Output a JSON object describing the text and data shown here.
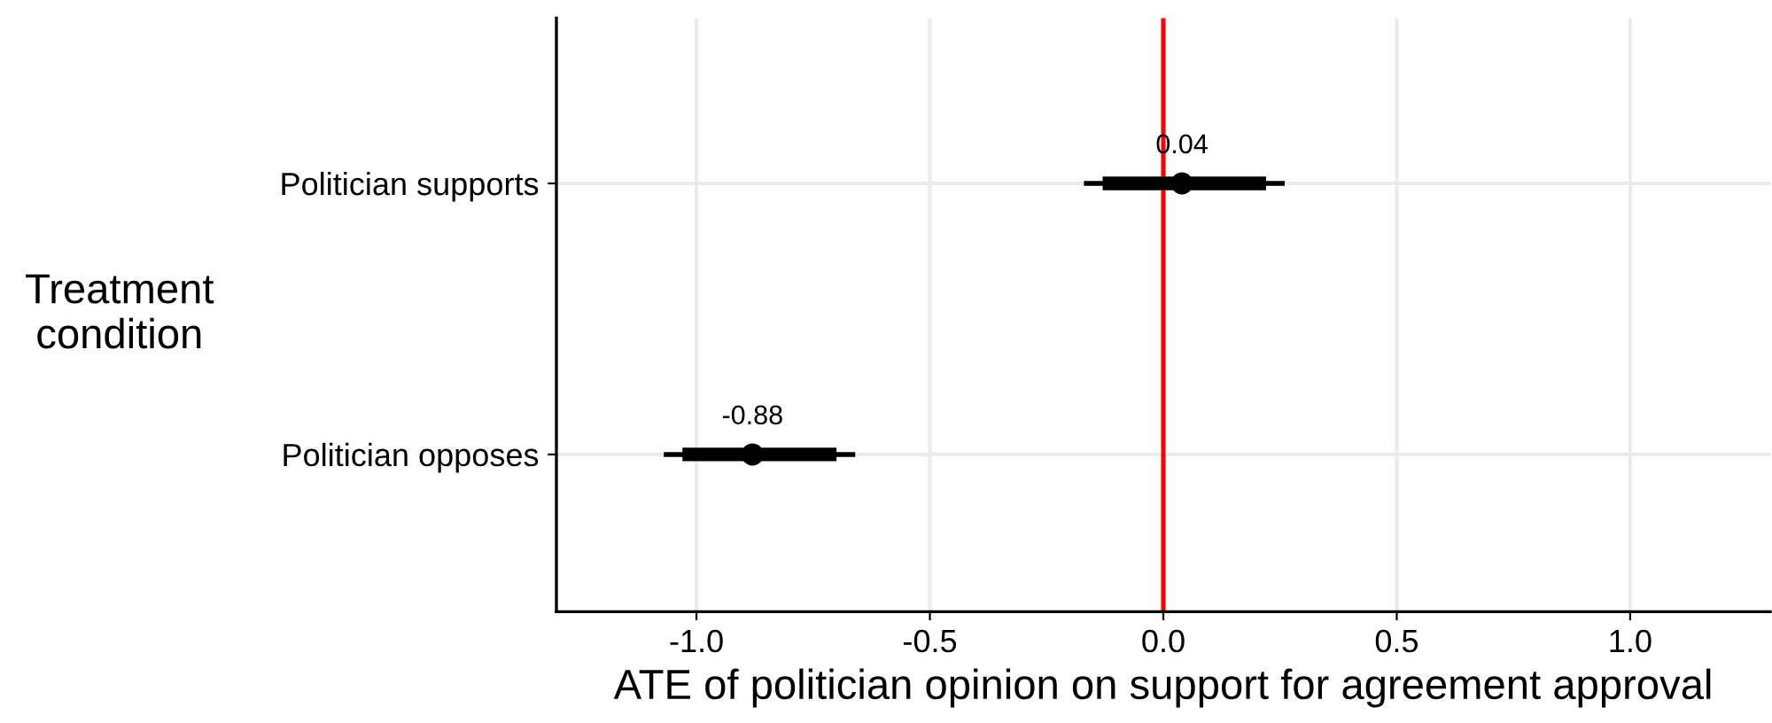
{
  "chart_data": {
    "type": "scatter",
    "orientation": "horizontal",
    "categories": [
      "Politician supports",
      "Politician opposes"
    ],
    "series": [
      {
        "type": "bar",
        "color": "#000000",
        "base": [
          -0.13,
          -1.03
        ],
        "values": [
          0.35,
          0.33
        ]
      },
      {
        "color": "#000000",
        "marker": "circle",
        "values": [
          0.04,
          -0.88
        ],
        "errors": [
          [
            -0.17,
            0.26
          ],
          [
            -1.07,
            -0.66
          ]
        ],
        "data_labels": true
      }
    ],
    "xlabel": "ATE of politician opinion on support for agreement approval",
    "ylabel": "Treatment\ncondition",
    "xlim": [
      -1.3,
      1.3
    ],
    "xticks": [
      {
        "value": -1.0,
        "label": "-1.0"
      },
      {
        "value": -0.5,
        "label": "-0.5"
      },
      {
        "value": 0,
        "label": "0.0"
      },
      {
        "value": 0.5,
        "label": "0.5"
      },
      {
        "value": 1.0,
        "label": "1.0"
      }
    ],
    "ref_lines": [
      {
        "axis": "x",
        "value": 0,
        "color": "#ff0000"
      }
    ],
    "grid": true,
    "legend": false
  }
}
